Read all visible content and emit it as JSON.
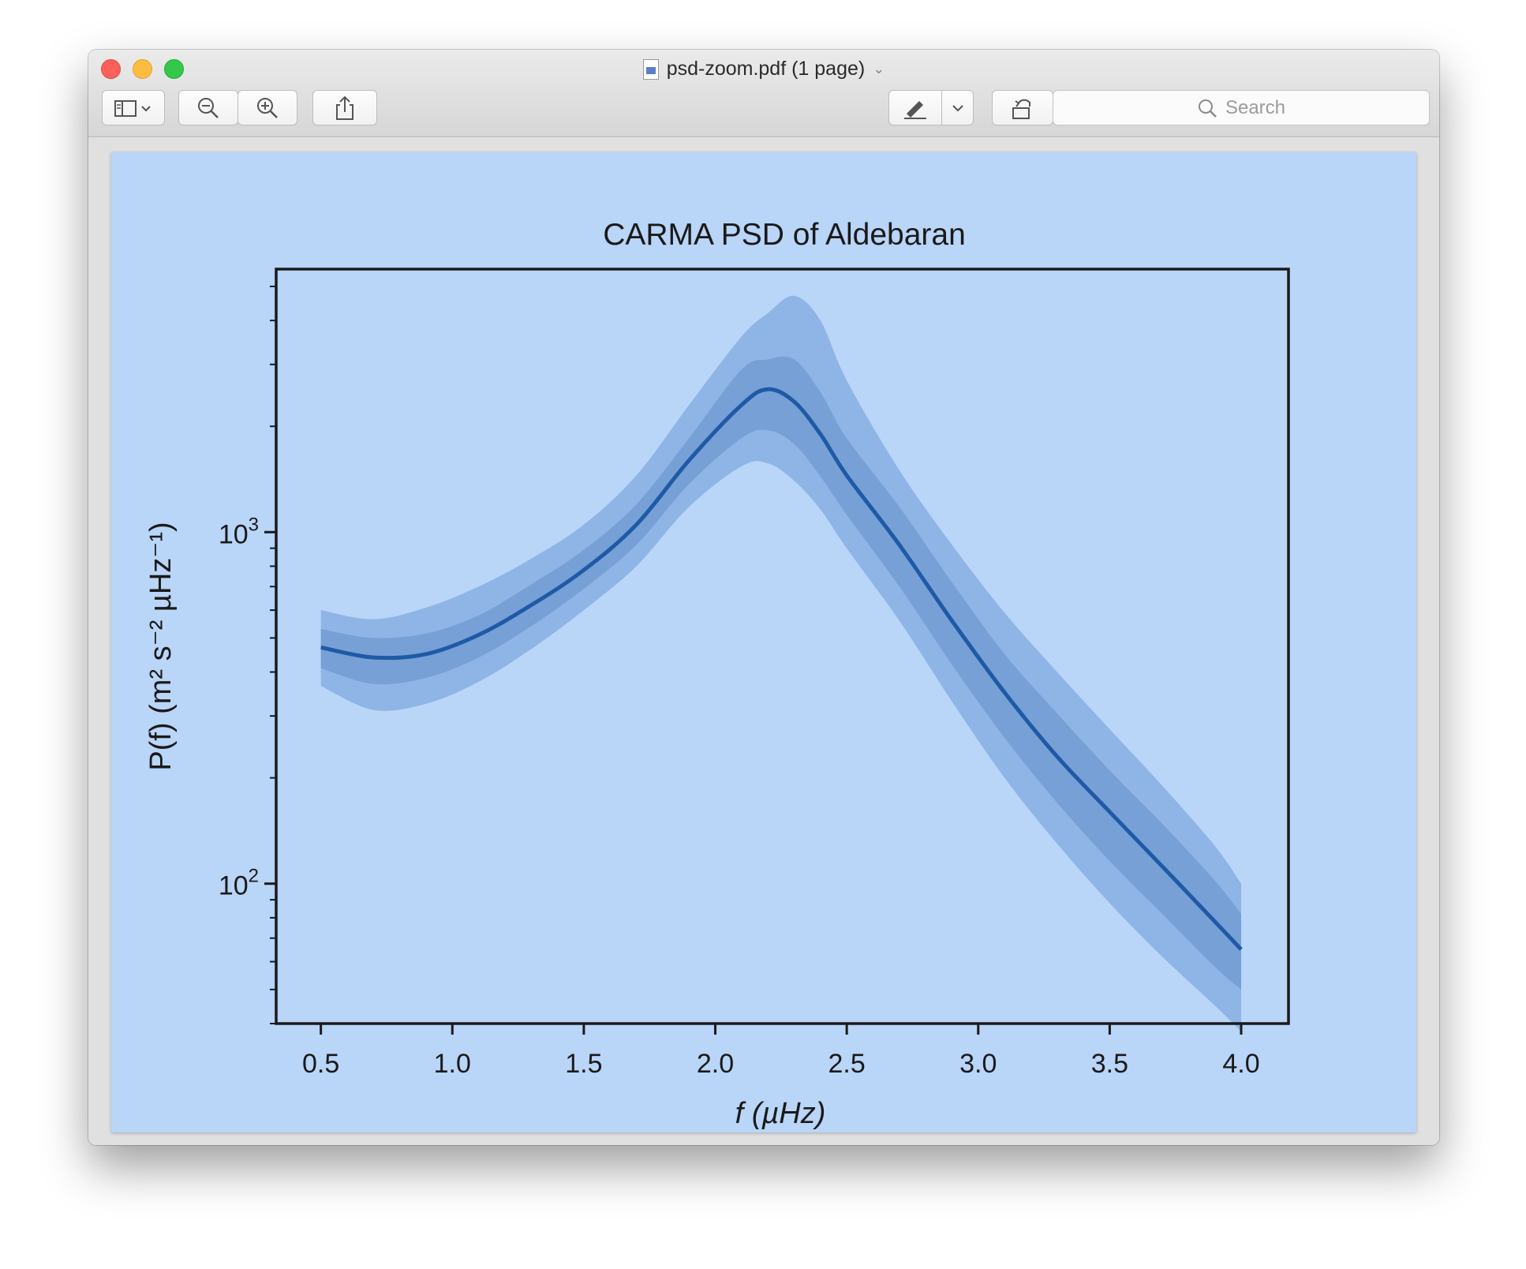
{
  "window": {
    "title": "psd-zoom.pdf (1 page)"
  },
  "toolbar": {
    "search_placeholder": "Search",
    "icons": [
      "sidebar-icon",
      "zoom-out-icon",
      "zoom-in-icon",
      "share-icon",
      "markup-pen-icon",
      "rotate-icon",
      "annotate-icon",
      "search-icon"
    ]
  },
  "colors": {
    "page_bg": "#b9d5f8",
    "band_outer": "#8fb4e6",
    "band_inner": "#77a0d6",
    "line": "#1f5aa6"
  },
  "chart_data": {
    "type": "line",
    "title": "CARMA PSD of Aldebaran",
    "xlabel": "f (µHz)",
    "ylabel": "P(f) (m² s⁻² µHz⁻¹)",
    "xlim": [
      0.33,
      4.18
    ],
    "ylim": [
      40,
      5600
    ],
    "yscale": "log",
    "xticks": [
      0.5,
      1.0,
      1.5,
      2.0,
      2.5,
      3.0,
      3.5,
      4.0
    ],
    "xtick_labels": [
      "0.5",
      "1.0",
      "1.5",
      "2.0",
      "2.5",
      "3.0",
      "3.5",
      "4.0"
    ],
    "ytick_labels": [
      {
        "base": "10",
        "exp": "2",
        "value": 100
      },
      {
        "base": "10",
        "exp": "3",
        "value": 1000
      }
    ],
    "grid": false,
    "x": [
      0.5,
      0.7,
      0.9,
      1.1,
      1.3,
      1.5,
      1.7,
      1.9,
      2.1,
      2.2,
      2.3,
      2.4,
      2.5,
      2.7,
      2.9,
      3.1,
      3.3,
      3.5,
      3.7,
      3.9,
      4.0
    ],
    "series": [
      {
        "values": [
          470,
          440,
          450,
          510,
          620,
          780,
          1050,
          1600,
          2300,
          2550,
          2350,
          1900,
          1450,
          920,
          560,
          350,
          230,
          160,
          112,
          78,
          65
        ]
      }
    ],
    "bands": [
      {
        "lower": [
          365,
          312,
          325,
          375,
          465,
          600,
          800,
          1180,
          1540,
          1570,
          1400,
          1160,
          900,
          560,
          330,
          200,
          130,
          88,
          62,
          45,
          38
        ],
        "upper": [
          600,
          565,
          610,
          700,
          840,
          1050,
          1450,
          2300,
          3600,
          4200,
          4700,
          4000,
          2700,
          1500,
          920,
          590,
          400,
          275,
          190,
          128,
          100
        ]
      },
      {
        "lower": [
          410,
          370,
          385,
          440,
          540,
          690,
          920,
          1370,
          1850,
          1950,
          1780,
          1440,
          1120,
          700,
          420,
          260,
          170,
          116,
          82,
          58,
          50
        ],
        "upper": [
          530,
          500,
          515,
          580,
          710,
          890,
          1200,
          1850,
          2900,
          3100,
          3100,
          2500,
          1850,
          1180,
          720,
          450,
          305,
          210,
          148,
          102,
          82
        ]
      }
    ]
  }
}
